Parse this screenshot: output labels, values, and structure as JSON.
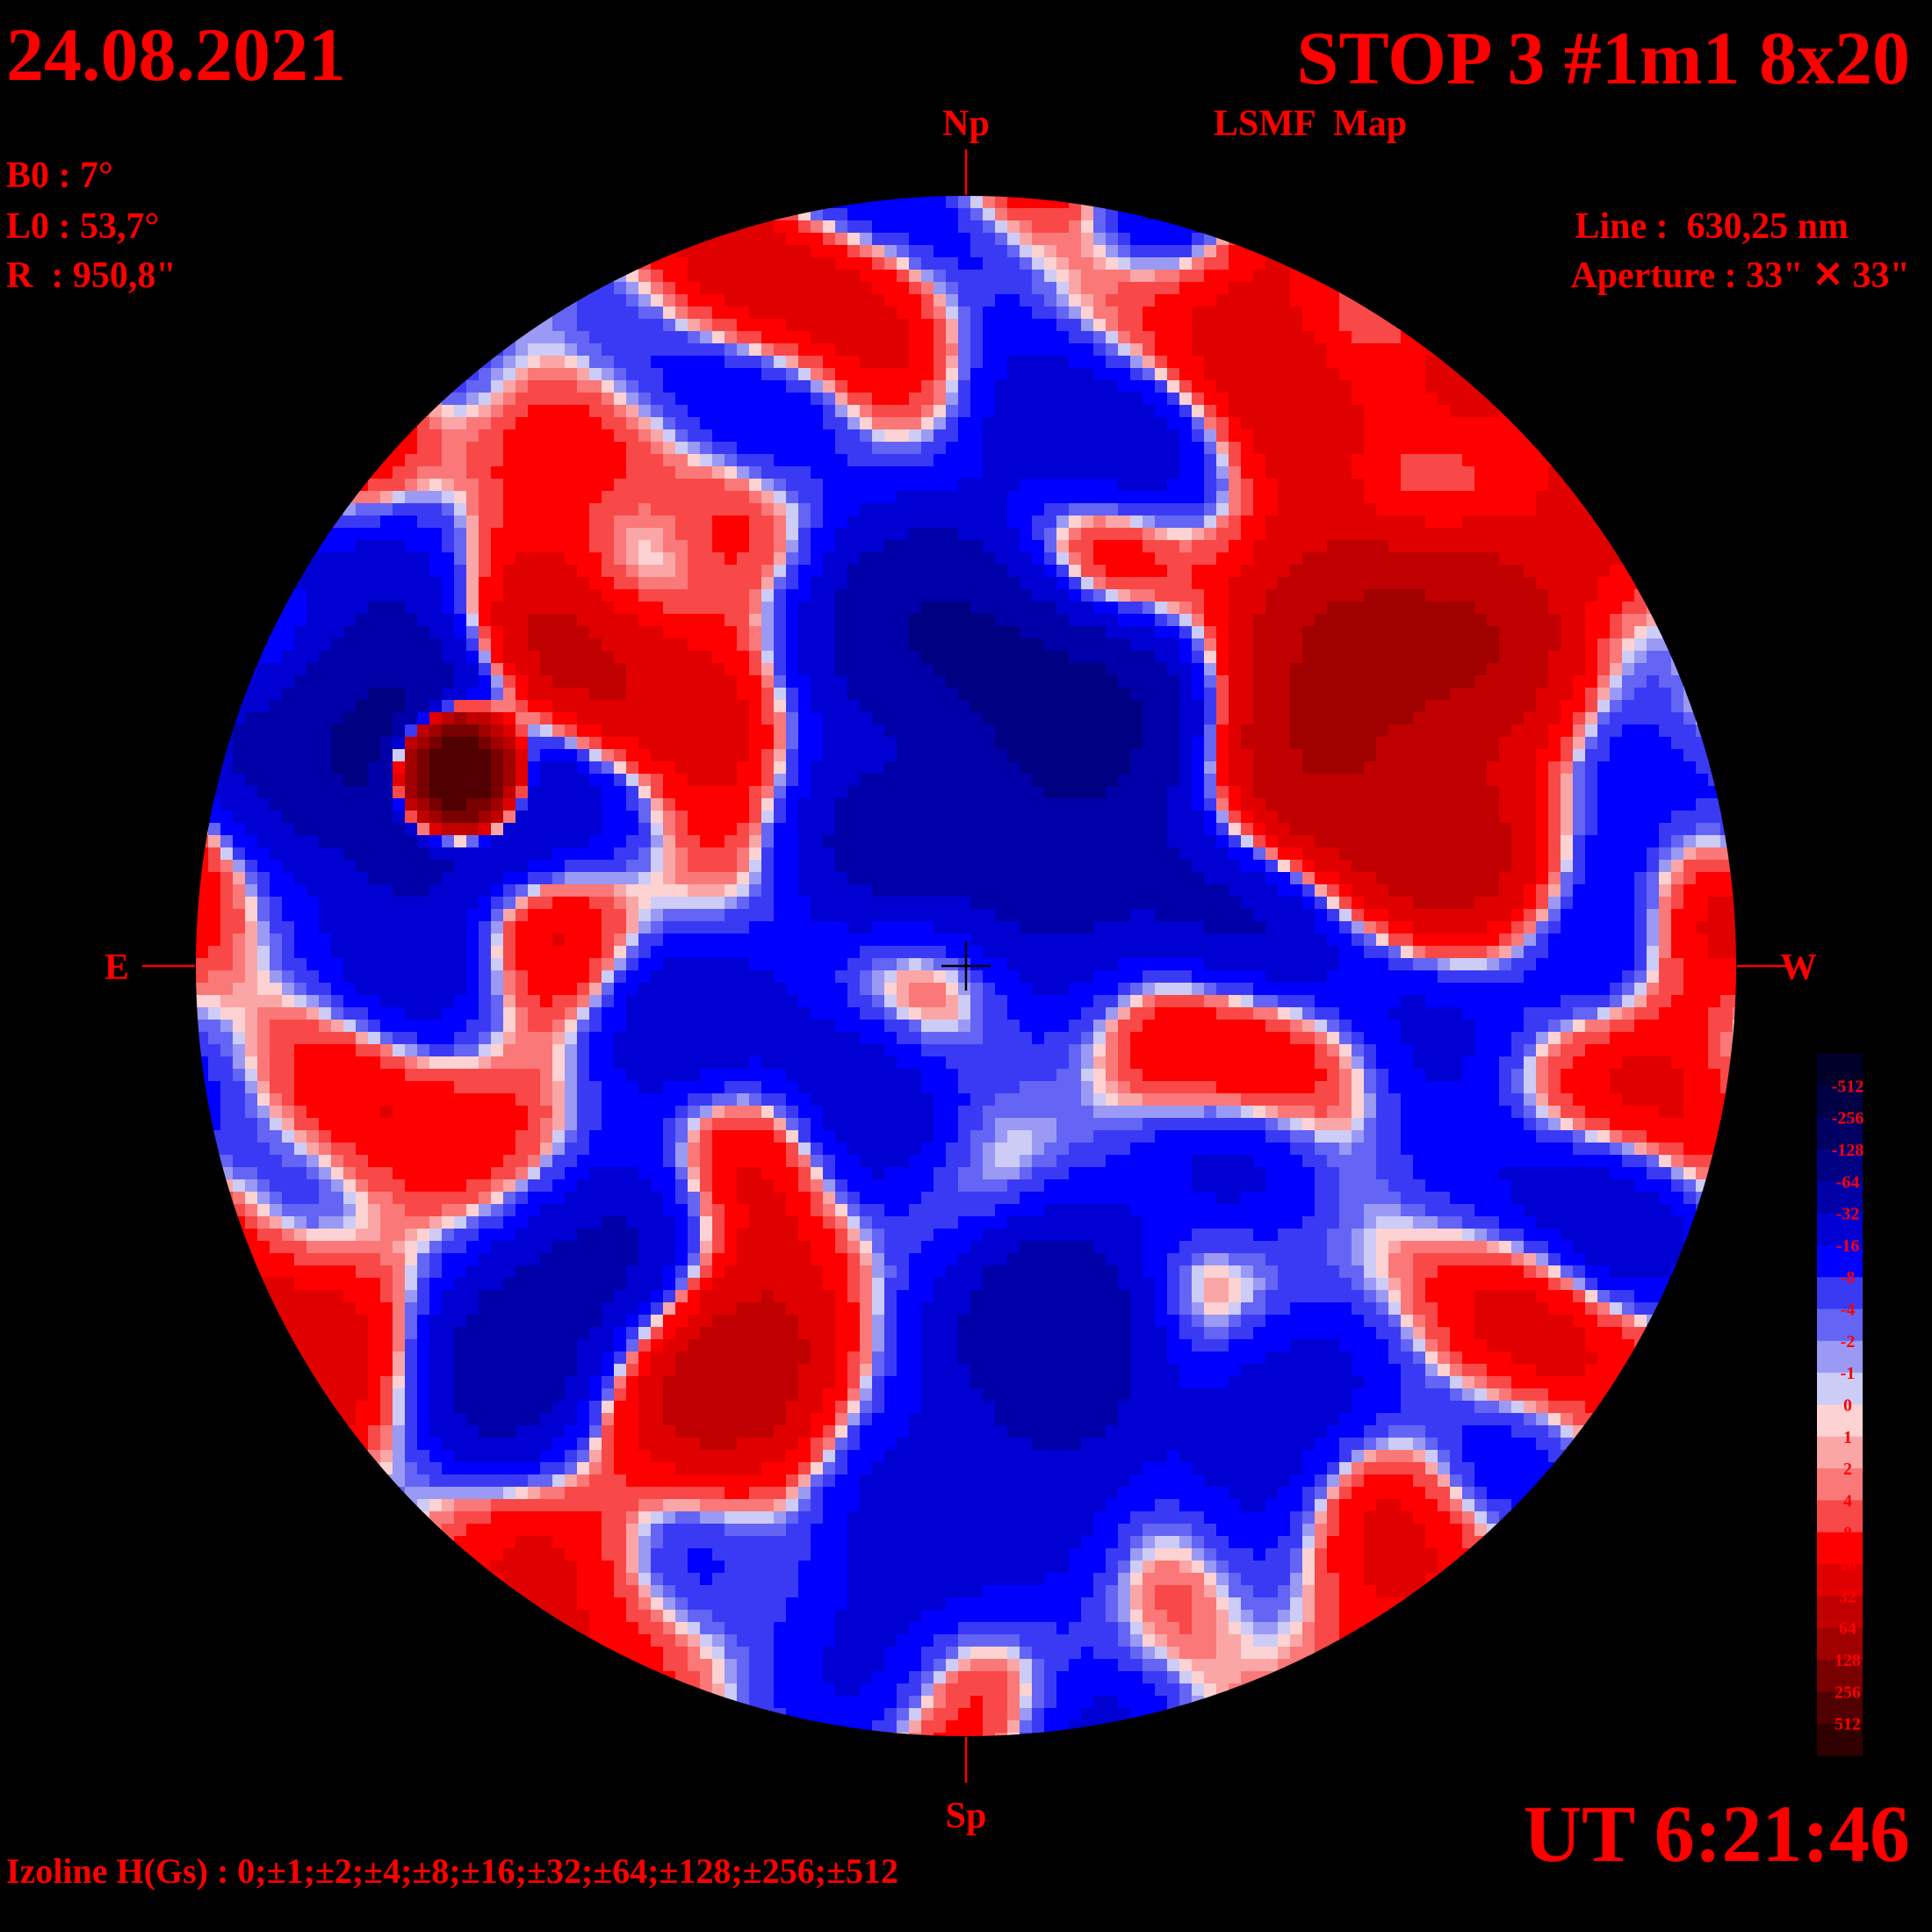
{
  "header": {
    "date": "24.08.2021",
    "title": "STOP 3 #1m1 8x20",
    "subtitle": "LSMF  Map",
    "time": "UT 6:21:46"
  },
  "parameters": [
    "B0 : 7°",
    "L0 : 53,7°",
    "R  : 950,8\""
  ],
  "instrument": [
    "Line :  630,25 nm",
    "Aperture : 33\" ✕ 33\""
  ],
  "directions": {
    "north": "Np",
    "south": "Sp",
    "east": "E",
    "west": "W"
  },
  "legend": {
    "labels": [
      "-512",
      "-256",
      "-128",
      "-64",
      "-32",
      "-16",
      "-8",
      "-4",
      "-2",
      "-1",
      "0",
      "1",
      "2",
      "4",
      "8",
      "16",
      "32",
      "64",
      "128",
      "256",
      "512"
    ],
    "colors": [
      "#00002a",
      "#000046",
      "#000064",
      "#000082",
      "#0000a8",
      "#0000d2",
      "#0000ff",
      "#3a3af5",
      "#6464f5",
      "#9a9af5",
      "#ccccf7",
      "#fcd2d2",
      "#fba6a6",
      "#fa7878",
      "#f84848",
      "#ff0000",
      "#e00000",
      "#c00000",
      "#a00000",
      "#780000",
      "#500000",
      "#300000"
    ]
  },
  "footer": "Izoline H(Gs) : 0;±1;±2;±4;±8;±16;±32;±64;±128;±256;±512"
}
